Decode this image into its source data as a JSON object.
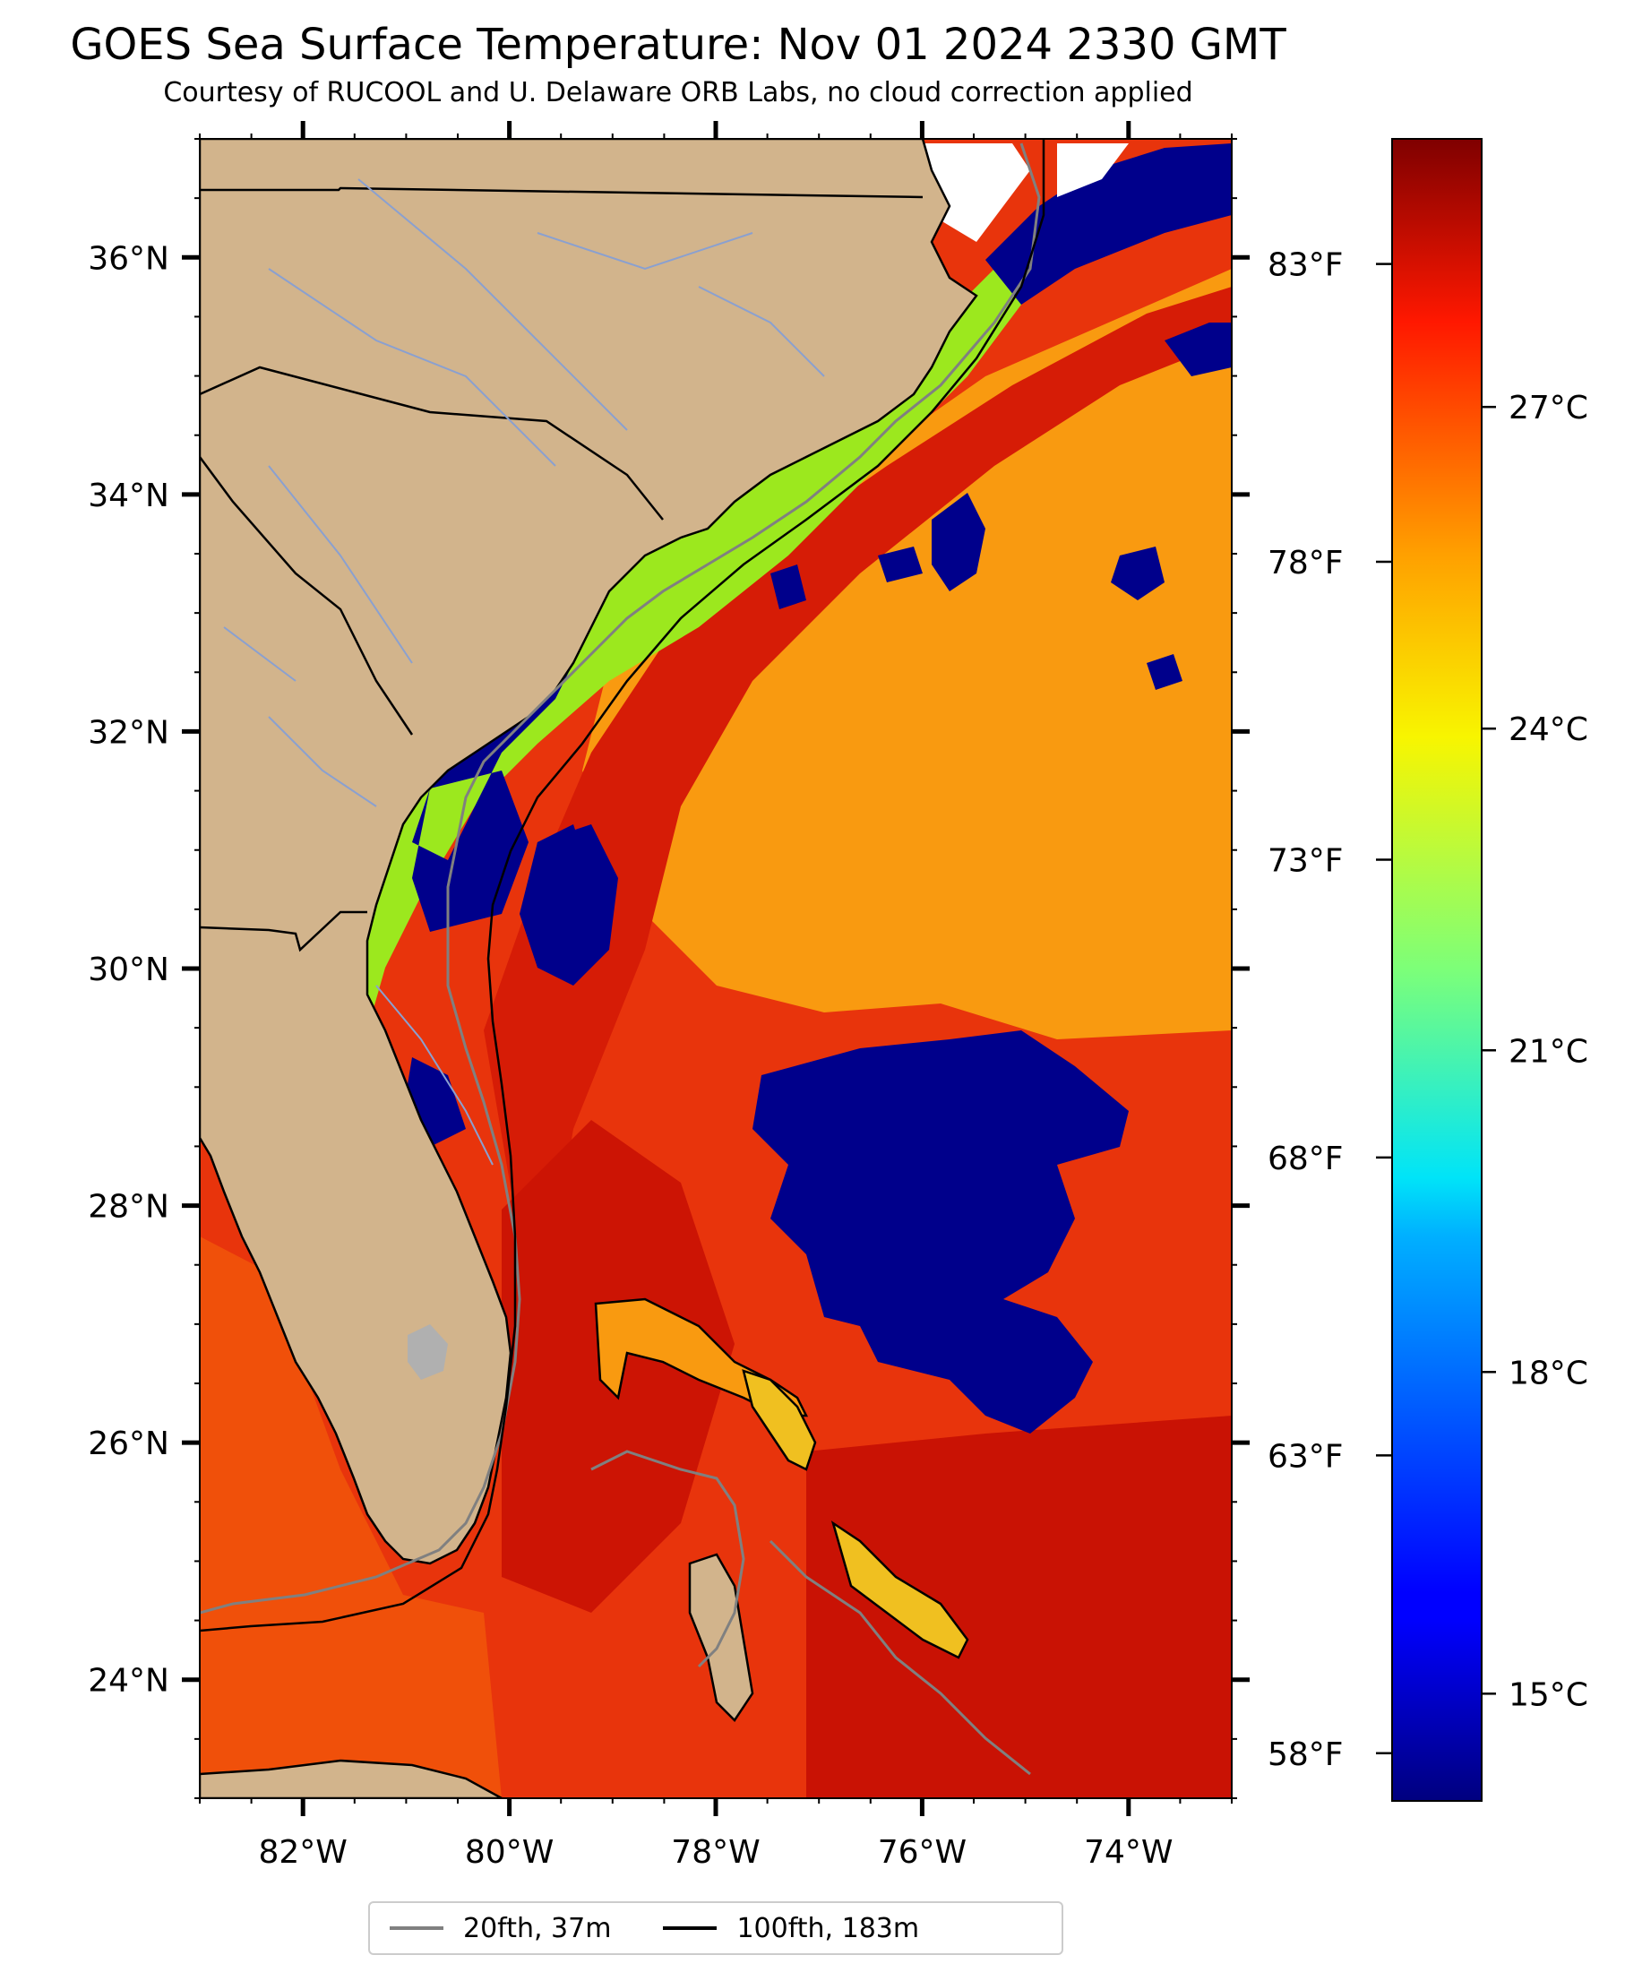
{
  "title": "GOES Sea Surface Temperature: Nov 01 2024 2330 GMT",
  "subtitle": "Courtesy of RUCOOL and U. Delaware ORB Labs, no cloud correction applied",
  "map": {
    "lon_range": [
      -83,
      -73
    ],
    "lat_range": [
      23,
      37
    ],
    "lat_ticks": [
      {
        "value": 36,
        "label": "36°N"
      },
      {
        "value": 34,
        "label": "34°N"
      },
      {
        "value": 32,
        "label": "32°N"
      },
      {
        "value": 30,
        "label": "30°N"
      },
      {
        "value": 28,
        "label": "28°N"
      },
      {
        "value": 26,
        "label": "26°N"
      },
      {
        "value": 24,
        "label": "24°N"
      }
    ],
    "lon_ticks": [
      {
        "value": -82,
        "label": "82°W"
      },
      {
        "value": -80,
        "label": "80°W"
      },
      {
        "value": -78,
        "label": "78°W"
      },
      {
        "value": -76,
        "label": "76°W"
      },
      {
        "value": -74,
        "label": "74°W"
      }
    ],
    "fahrenheit_ticks": [
      {
        "value": 83,
        "label": "83°F"
      },
      {
        "value": 78,
        "label": "78°F"
      },
      {
        "value": 73,
        "label": "73°F"
      },
      {
        "value": 68,
        "label": "68°F"
      },
      {
        "value": 63,
        "label": "63°F"
      },
      {
        "value": 58,
        "label": "58°F"
      }
    ],
    "colors": {
      "land": "#d2b48c",
      "cloud_cold": "#00008b",
      "warm": "#e8280a",
      "gulf_stream": "#d81a05",
      "shelf_green": "#9ce81e",
      "no_data": "#ffffff",
      "lake": "#b0b0b0"
    }
  },
  "colorbar": {
    "min_c": 14,
    "max_c": 29.5,
    "ticks": [
      {
        "value": 27,
        "label": "27°C"
      },
      {
        "value": 24,
        "label": "24°C"
      },
      {
        "value": 21,
        "label": "21°C"
      },
      {
        "value": 18,
        "label": "18°C"
      },
      {
        "value": 15,
        "label": "15°C"
      }
    ],
    "colormap": "jet"
  },
  "legend": {
    "items": [
      {
        "label": "20fth, 37m",
        "color": "#808080"
      },
      {
        "label": "100fth, 183m",
        "color": "#000000"
      }
    ]
  }
}
